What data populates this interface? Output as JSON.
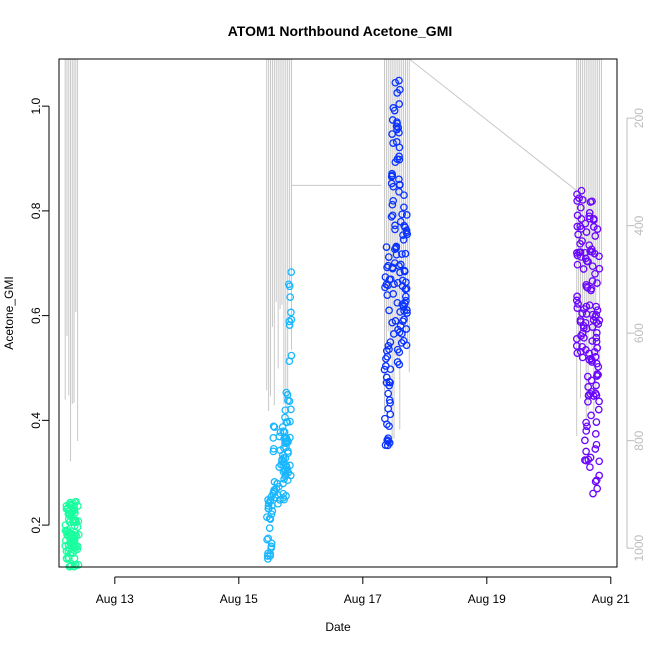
{
  "chart_data": {
    "type": "scatter",
    "title": "ATOM1 Northbound Acetone_GMI",
    "xlabel": "Date",
    "ylabel": "Acetone_GMI",
    "xlim": [
      12.1,
      21.1
    ],
    "ylim": [
      0.12,
      1.09
    ],
    "x_ticks": [
      13,
      15,
      17,
      19,
      21
    ],
    "x_tick_labels": [
      "Aug 13",
      "Aug 15",
      "Aug 17",
      "Aug 19",
      "Aug 21"
    ],
    "y_ticks": [
      0.2,
      0.4,
      0.6,
      0.8,
      1.0
    ],
    "y_tick_labels": [
      "0.2",
      "0.4",
      "0.6",
      "0.8",
      "1.0"
    ],
    "y2_ticks": [
      200,
      400,
      600,
      800,
      1000
    ],
    "y2_tick_labels": [
      "200",
      "400",
      "600",
      "800",
      "1000"
    ],
    "y2lim": [
      1035,
      90
    ],
    "grid": false,
    "series": [
      {
        "color": "#1aff9f",
        "clusters": [
          {
            "x_from": 12.2,
            "x_to": 12.42,
            "y_from": 0.12,
            "y_to": 0.245,
            "n": 90
          }
        ]
      },
      {
        "color": "#1ab7ff",
        "clusters": [
          {
            "x_from": 15.45,
            "x_to": 15.55,
            "y_from": 0.13,
            "y_to": 0.26,
            "n": 25
          },
          {
            "x_from": 15.55,
            "x_to": 15.8,
            "y_from": 0.24,
            "y_to": 0.39,
            "n": 50
          },
          {
            "x_from": 15.72,
            "x_to": 15.85,
            "y_from": 0.28,
            "y_to": 0.46,
            "n": 25
          },
          {
            "x_from": 15.8,
            "x_to": 15.85,
            "y_from": 0.5,
            "y_to": 0.69,
            "n": 10
          }
        ]
      },
      {
        "color": "#0a33ff",
        "clusters": [
          {
            "x_from": 17.35,
            "x_to": 17.45,
            "y_from": 0.35,
            "y_to": 0.74,
            "n": 40
          },
          {
            "x_from": 17.45,
            "x_to": 17.6,
            "y_from": 0.5,
            "y_to": 1.05,
            "n": 60
          },
          {
            "x_from": 17.6,
            "x_to": 17.72,
            "y_from": 0.54,
            "y_to": 0.84,
            "n": 40
          }
        ]
      },
      {
        "color": "#6a05ff",
        "clusters": [
          {
            "x_from": 20.45,
            "x_to": 20.58,
            "y_from": 0.52,
            "y_to": 0.86,
            "n": 40
          },
          {
            "x_from": 20.58,
            "x_to": 20.7,
            "y_from": 0.3,
            "y_to": 0.84,
            "n": 50
          },
          {
            "x_from": 20.7,
            "x_to": 20.82,
            "y_from": 0.24,
            "y_to": 0.8,
            "n": 50
          }
        ]
      }
    ],
    "altitude_trace": {
      "color": "#c8c8c8",
      "axis": "right",
      "segments": [
        {
          "x_from": 12.2,
          "x_to": 12.4,
          "low": 90,
          "high": 840,
          "n": 8
        },
        {
          "x_from": 15.45,
          "x_to": 15.85,
          "low": 90,
          "high": 800,
          "n": 14
        },
        {
          "x_from": 15.85,
          "x_to": 17.3,
          "low": 325,
          "high": 325,
          "n": 1
        },
        {
          "x_from": 17.35,
          "x_to": 17.75,
          "low": 90,
          "high": 840,
          "n": 14
        },
        {
          "x_from": 17.75,
          "x_to": 20.45,
          "low": 90,
          "high": 335,
          "n": 1
        },
        {
          "x_from": 20.45,
          "x_to": 20.85,
          "low": 90,
          "high": 800,
          "n": 14
        }
      ]
    }
  }
}
